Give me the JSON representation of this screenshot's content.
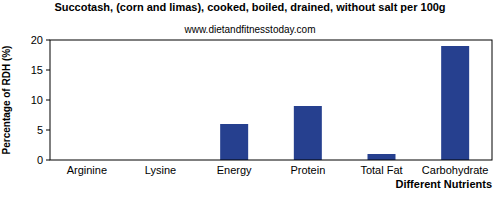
{
  "chart_data": {
    "type": "bar",
    "title": "Succotash, (corn and limas), cooked, boiled, drained, without salt per 100g",
    "subtitle": "www.dietandfitnesstoday.com",
    "x_label": "Different Nutrients",
    "y_label": "Percentage of RDH (%)",
    "categories": [
      "Arginine",
      "Lysine",
      "Energy",
      "Protein",
      "Total Fat",
      "Carbohydrate"
    ],
    "values": [
      0,
      0,
      6,
      9,
      1,
      19
    ],
    "color": "#26408f",
    "ylim": [
      0,
      20
    ],
    "yticks": [
      0,
      5,
      10,
      15,
      20
    ],
    "grid": false
  }
}
